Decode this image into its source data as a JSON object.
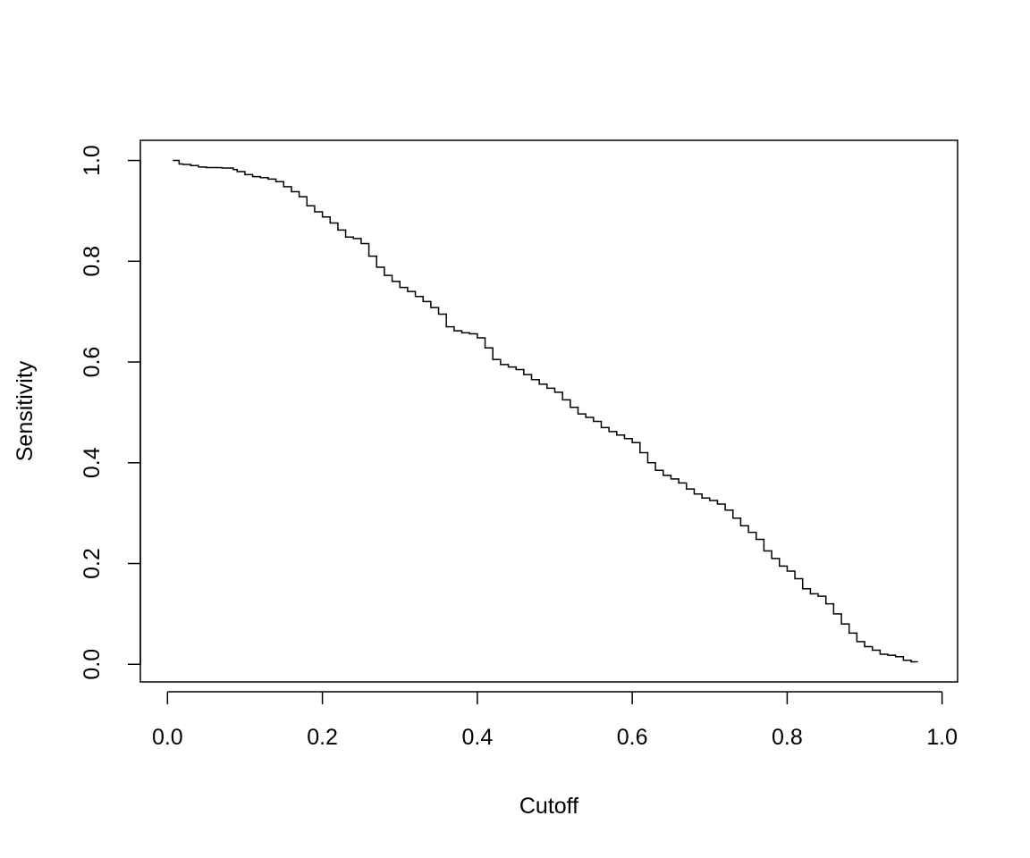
{
  "chart_data": {
    "type": "line",
    "title": "",
    "xlabel": "Cutoff",
    "ylabel": "Sensitivity",
    "xlim": [
      -0.035,
      1.02
    ],
    "ylim": [
      -0.035,
      1.04
    ],
    "x_ticks": [
      0.0,
      0.2,
      0.4,
      0.6,
      0.8,
      1.0
    ],
    "y_ticks": [
      0.0,
      0.2,
      0.4,
      0.6,
      0.8,
      1.0
    ],
    "x_tick_labels": [
      "0.0",
      "0.2",
      "0.4",
      "0.6",
      "0.8",
      "1.0"
    ],
    "y_tick_labels": [
      "0.0",
      "0.2",
      "0.4",
      "0.6",
      "0.8",
      "1.0"
    ],
    "grid": false,
    "legend": "none",
    "line_color": "#000000",
    "series": [
      {
        "x": [
          0.007,
          0.015,
          0.02,
          0.03,
          0.04,
          0.05,
          0.06,
          0.07,
          0.08,
          0.085,
          0.09,
          0.1,
          0.11,
          0.12,
          0.13,
          0.14,
          0.15,
          0.16,
          0.17,
          0.18,
          0.19,
          0.2,
          0.21,
          0.22,
          0.23,
          0.24,
          0.25,
          0.26,
          0.27,
          0.28,
          0.29,
          0.3,
          0.31,
          0.32,
          0.33,
          0.34,
          0.35,
          0.36,
          0.37,
          0.38,
          0.39,
          0.4,
          0.41,
          0.42,
          0.43,
          0.44,
          0.45,
          0.46,
          0.47,
          0.48,
          0.49,
          0.5,
          0.51,
          0.52,
          0.53,
          0.54,
          0.55,
          0.56,
          0.57,
          0.58,
          0.59,
          0.6,
          0.61,
          0.62,
          0.63,
          0.64,
          0.65,
          0.66,
          0.67,
          0.68,
          0.69,
          0.7,
          0.71,
          0.72,
          0.73,
          0.74,
          0.75,
          0.76,
          0.77,
          0.78,
          0.79,
          0.8,
          0.81,
          0.82,
          0.83,
          0.84,
          0.85,
          0.86,
          0.87,
          0.88,
          0.89,
          0.9,
          0.91,
          0.92,
          0.93,
          0.94,
          0.95,
          0.96,
          0.968
        ],
        "y": [
          1.0,
          0.993,
          0.992,
          0.99,
          0.987,
          0.986,
          0.986,
          0.985,
          0.985,
          0.982,
          0.978,
          0.972,
          0.968,
          0.966,
          0.963,
          0.958,
          0.948,
          0.938,
          0.928,
          0.91,
          0.898,
          0.888,
          0.876,
          0.862,
          0.848,
          0.845,
          0.835,
          0.81,
          0.788,
          0.772,
          0.76,
          0.748,
          0.74,
          0.73,
          0.72,
          0.708,
          0.695,
          0.67,
          0.662,
          0.658,
          0.656,
          0.648,
          0.628,
          0.605,
          0.595,
          0.59,
          0.585,
          0.575,
          0.565,
          0.556,
          0.548,
          0.54,
          0.525,
          0.51,
          0.497,
          0.49,
          0.482,
          0.47,
          0.462,
          0.455,
          0.448,
          0.44,
          0.42,
          0.4,
          0.385,
          0.375,
          0.368,
          0.36,
          0.348,
          0.338,
          0.33,
          0.325,
          0.318,
          0.306,
          0.29,
          0.275,
          0.262,
          0.248,
          0.225,
          0.21,
          0.195,
          0.185,
          0.17,
          0.15,
          0.14,
          0.135,
          0.12,
          0.1,
          0.08,
          0.062,
          0.045,
          0.035,
          0.028,
          0.02,
          0.018,
          0.015,
          0.008,
          0.005,
          0.004
        ]
      }
    ]
  }
}
